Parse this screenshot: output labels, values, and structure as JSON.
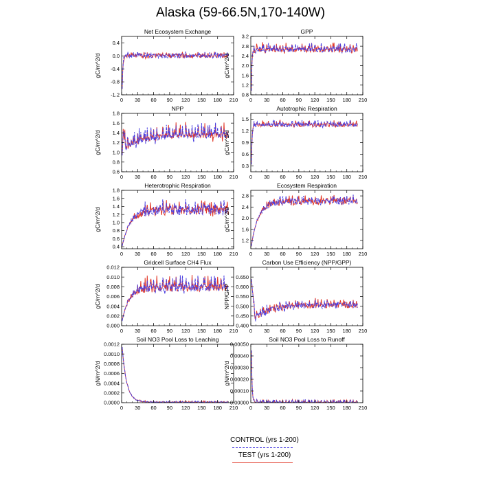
{
  "title": "Alaska (59-66.5N,170-140W)",
  "legend": {
    "control_label": "CONTROL (yrs 1-200)",
    "test_label": "TEST (yrs 1-200)",
    "control_color": "#4a3fe0",
    "test_color": "#e23a2a"
  },
  "chart_data": [
    {
      "id": "nee",
      "type": "line",
      "title": "Net Ecosystem Exchange",
      "ylabel": "gC/m^2/d",
      "xlim": [
        0,
        210
      ],
      "ylim": [
        -1.2,
        0.6
      ],
      "xticks": [
        0,
        30,
        60,
        90,
        120,
        150,
        180,
        210
      ],
      "yticks": [
        -1.2,
        -0.8,
        -0.4,
        0.0,
        0.4
      ],
      "ytick_labels": [
        "-1.2",
        "-0.8",
        "-0.4",
        "0.0",
        "0.4"
      ],
      "series_profile": {
        "start": -1.0,
        "steady": 0.0,
        "spinup_years": 4,
        "noise": 0.07,
        "spike": 0.06
      }
    },
    {
      "id": "gpp",
      "type": "line",
      "title": "GPP",
      "ylabel": "gC/m^2/d",
      "xlim": [
        0,
        210
      ],
      "ylim": [
        0.8,
        3.2
      ],
      "xticks": [
        0,
        30,
        60,
        90,
        120,
        150,
        180,
        210
      ],
      "yticks": [
        0.8,
        1.2,
        1.6,
        2.0,
        2.4,
        2.8,
        3.2
      ],
      "ytick_labels": [
        "0.8",
        "1.2",
        "1.6",
        "2.0",
        "2.4",
        "2.8",
        "3.2"
      ],
      "series_profile": {
        "start": 1.0,
        "steady": 2.65,
        "spinup_years": 3,
        "noise": 0.1,
        "spike": 0.2
      }
    },
    {
      "id": "npp",
      "type": "line",
      "title": "NPP",
      "ylabel": "gC/m^2/d",
      "xlim": [
        0,
        210
      ],
      "ylim": [
        0.6,
        1.8
      ],
      "xticks": [
        0,
        30,
        60,
        90,
        120,
        150,
        180,
        210
      ],
      "yticks": [
        0.6,
        0.8,
        1.0,
        1.2,
        1.4,
        1.6,
        1.8
      ],
      "ytick_labels": [
        "0.6",
        "0.8",
        "1.0",
        "1.2",
        "1.4",
        "1.6",
        "1.8"
      ],
      "series_profile": {
        "start": 0.7,
        "peak": 1.45,
        "dip": 1.1,
        "steady": 1.35,
        "spinup_years": 4,
        "noise": 0.06,
        "spike": 0.2
      }
    },
    {
      "id": "ar",
      "type": "line",
      "title": "Autotrophic Respiration",
      "ylabel": "gC/m^2/d",
      "xlim": [
        0,
        210
      ],
      "ylim": [
        0.15,
        1.65
      ],
      "xticks": [
        0,
        30,
        60,
        90,
        120,
        150,
        180,
        210
      ],
      "yticks": [
        0.3,
        0.6,
        0.9,
        1.2,
        1.5
      ],
      "ytick_labels": [
        "0.3",
        "0.6",
        "0.9",
        "1.2",
        "1.5"
      ],
      "series_profile": {
        "start": 0.35,
        "steady": 1.35,
        "spinup_years": 4,
        "noise": 0.05,
        "spike": 0.08
      }
    },
    {
      "id": "hr",
      "type": "line",
      "title": "Heterotrophic Respiration",
      "ylabel": "gC/m^2/d",
      "xlim": [
        0,
        210
      ],
      "ylim": [
        0.35,
        1.8
      ],
      "xticks": [
        0,
        30,
        60,
        90,
        120,
        150,
        180,
        210
      ],
      "yticks": [
        0.4,
        0.6,
        0.8,
        1.0,
        1.2,
        1.4,
        1.6,
        1.8
      ],
      "ytick_labels": [
        "0.4",
        "0.6",
        "0.8",
        "1.0",
        "1.2",
        "1.4",
        "1.6",
        "1.8"
      ],
      "series_profile": {
        "start": 0.42,
        "steady": 1.3,
        "spinup_years": 45,
        "noise": 0.12,
        "spike": 0.15
      }
    },
    {
      "id": "er",
      "type": "line",
      "title": "Ecosystem Respiration",
      "ylabel": "gC/m^2/d",
      "xlim": [
        0,
        210
      ],
      "ylim": [
        0.9,
        3.0
      ],
      "xticks": [
        0,
        30,
        60,
        90,
        120,
        150,
        180,
        210
      ],
      "yticks": [
        1.2,
        1.6,
        2.0,
        2.4,
        2.8
      ],
      "ytick_labels": [
        "1.2",
        "1.6",
        "2.0",
        "2.4",
        "2.8"
      ],
      "series_profile": {
        "start": 1.0,
        "steady": 2.6,
        "spinup_years": 40,
        "noise": 0.12,
        "spike": 0.15
      }
    },
    {
      "id": "ch4",
      "type": "line",
      "title": "Gridcell Surface CH4 Flux",
      "ylabel": "gC/m^2/d",
      "xlim": [
        0,
        210
      ],
      "ylim": [
        0.0,
        0.012
      ],
      "xticks": [
        0,
        30,
        60,
        90,
        120,
        150,
        180,
        210
      ],
      "yticks": [
        0.0,
        0.002,
        0.004,
        0.006,
        0.008,
        0.01,
        0.012
      ],
      "ytick_labels": [
        "0.000",
        "0.002",
        "0.004",
        "0.006",
        "0.008",
        "0.010",
        "0.012"
      ],
      "series_profile": {
        "start": 0.001,
        "steady": 0.0078,
        "spinup_years": 40,
        "noise": 0.0008,
        "spike": 0.0018
      }
    },
    {
      "id": "cue",
      "type": "line",
      "title": "Carbon Use Efficiency (NPP/GPP)",
      "ylabel": "NPP/GPP",
      "xlim": [
        0,
        210
      ],
      "ylim": [
        0.4,
        0.7
      ],
      "xticks": [
        0,
        30,
        60,
        90,
        120,
        150,
        180,
        210
      ],
      "yticks": [
        0.4,
        0.45,
        0.5,
        0.55,
        0.6,
        0.65
      ],
      "ytick_labels": [
        "0.400",
        "0.450",
        "0.500",
        "0.550",
        "0.600",
        "0.650"
      ],
      "series_profile": {
        "start": 0.67,
        "dip": 0.44,
        "steady": 0.505,
        "spinup_years": 8,
        "noise": 0.015,
        "spike": 0.02
      }
    },
    {
      "id": "leach",
      "type": "line",
      "title": "Soil NO3 Pool Loss to Leaching",
      "ylabel": "gN/m^2/d",
      "xlim": [
        0,
        210
      ],
      "ylim": [
        0.0,
        0.0012
      ],
      "xticks": [
        0,
        30,
        60,
        90,
        120,
        150,
        180,
        210
      ],
      "yticks": [
        0.0,
        0.0002,
        0.0004,
        0.0006,
        0.0008,
        0.001,
        0.0012
      ],
      "ytick_labels": [
        "0.0000",
        "0.0002",
        "0.0004",
        "0.0006",
        "0.0008",
        "0.0010",
        "0.0012"
      ],
      "series_profile": {
        "start": 0.00115,
        "steady": 1e-05,
        "spinup_years": 25,
        "decay": true,
        "noise": 6e-06,
        "spike": 2e-05
      }
    },
    {
      "id": "runoff",
      "type": "line",
      "title": "Soil NO3 Pool Loss to Runoff",
      "ylabel": "gN/m^2/d",
      "xlim": [
        0,
        210
      ],
      "ylim": [
        0.0,
        0.0005
      ],
      "xticks": [
        0,
        30,
        60,
        90,
        120,
        150,
        180,
        210
      ],
      "yticks": [
        0.0,
        0.0001,
        0.0002,
        0.0003,
        0.0004,
        0.0005
      ],
      "ytick_labels": [
        "0.00000",
        "0.00010",
        "0.00020",
        "0.00030",
        "0.00040",
        "0.00050"
      ],
      "series_profile": {
        "start": 0.00045,
        "steady": 3e-06,
        "spinup_years": 4,
        "decay": true,
        "noise": 3e-06,
        "spike": 2e-05
      }
    }
  ]
}
